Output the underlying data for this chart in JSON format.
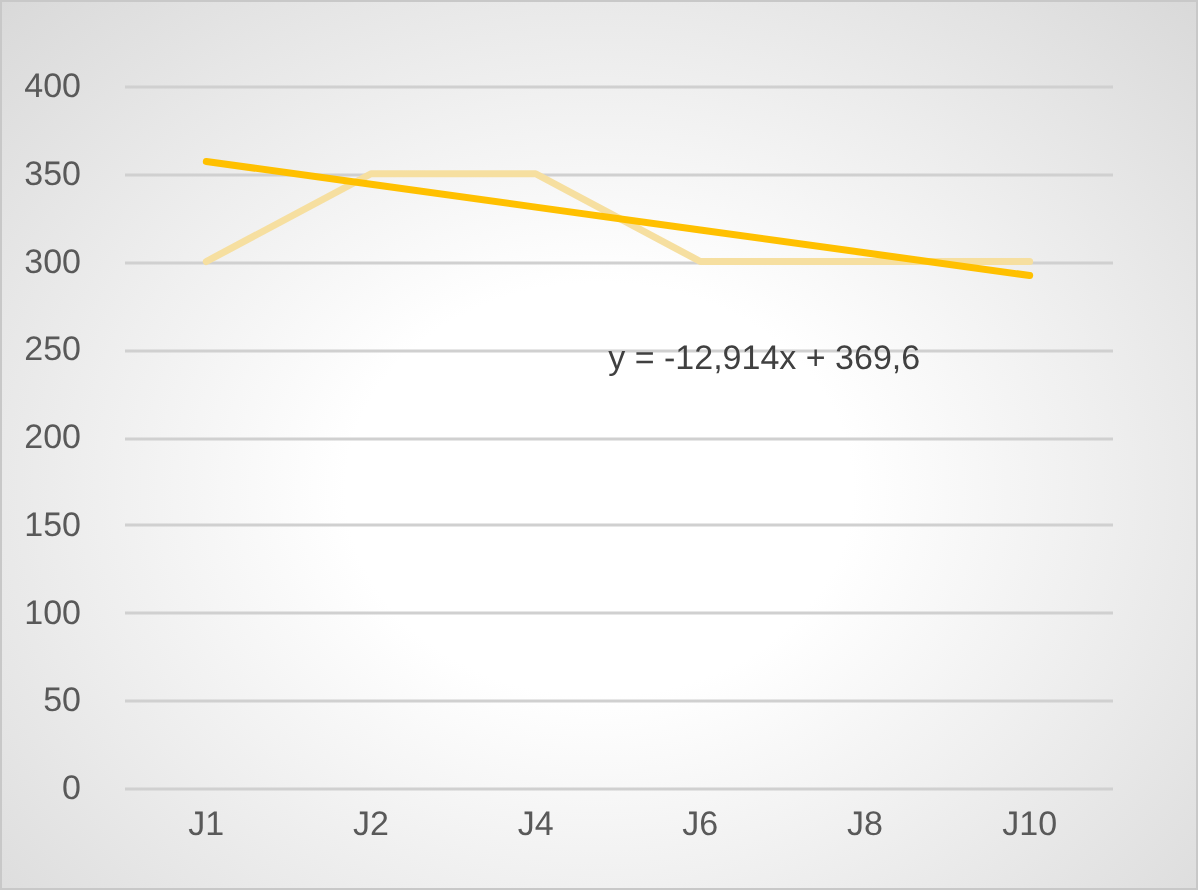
{
  "chart_data": {
    "type": "line",
    "categories": [
      "J1",
      "J2",
      "J4",
      "J6",
      "J8",
      "J10"
    ],
    "series": [
      {
        "color": "#f6dfa0",
        "values": [
          300,
          350,
          350,
          300,
          300,
          300
        ]
      },
      {
        "type": "line",
        "color": "#ffc000",
        "values": [
          357,
          344,
          331,
          318,
          305,
          292
        ]
      }
    ],
    "ylim": [
      0,
      400
    ],
    "yticks": [
      0,
      50,
      100,
      150,
      200,
      250,
      300,
      350,
      400
    ],
    "grid": "y",
    "marker": "none",
    "line_style": "solid",
    "annotations": [
      "y = -12,914x + 369,6"
    ]
  }
}
